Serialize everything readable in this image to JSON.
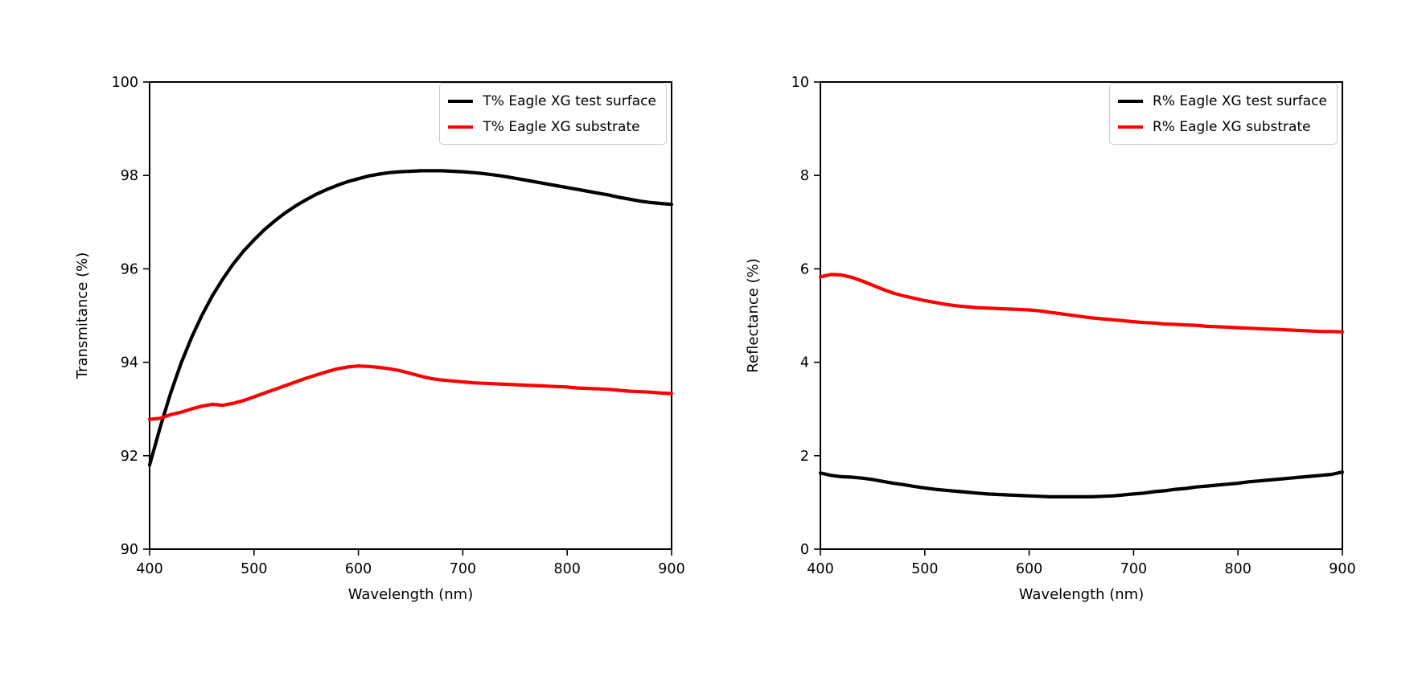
{
  "page": {
    "background": "#ffffff"
  },
  "colors": {
    "series_black": "#000000",
    "series_red": "#ff0000",
    "axis": "#000000",
    "legend_border": "#cccccc"
  },
  "chart_data": [
    {
      "type": "line",
      "title": "",
      "xlabel": "Wavelength (nm)",
      "ylabel": "Transmitance (%)",
      "xlim": [
        400,
        900
      ],
      "ylim": [
        90,
        100
      ],
      "xticks": [
        400,
        500,
        600,
        700,
        800,
        900
      ],
      "yticks": [
        90,
        92,
        94,
        96,
        98,
        100
      ],
      "grid": false,
      "legend_position": "upper right",
      "x": [
        400,
        410,
        420,
        430,
        440,
        450,
        460,
        470,
        480,
        490,
        500,
        510,
        520,
        530,
        540,
        550,
        560,
        570,
        580,
        590,
        600,
        610,
        620,
        630,
        640,
        650,
        660,
        670,
        680,
        690,
        700,
        710,
        720,
        730,
        740,
        750,
        760,
        770,
        780,
        790,
        800,
        810,
        820,
        830,
        840,
        850,
        860,
        870,
        880,
        890,
        900
      ],
      "series": [
        {
          "name": "T% Eagle XG test surface",
          "color": "#000000",
          "values": [
            91.8,
            92.6,
            93.33,
            93.97,
            94.52,
            95.0,
            95.42,
            95.78,
            96.1,
            96.38,
            96.62,
            96.84,
            97.03,
            97.2,
            97.35,
            97.48,
            97.6,
            97.7,
            97.79,
            97.87,
            97.93,
            97.99,
            98.03,
            98.06,
            98.08,
            98.09,
            98.1,
            98.1,
            98.1,
            98.09,
            98.08,
            98.06,
            98.04,
            98.01,
            97.98,
            97.94,
            97.9,
            97.86,
            97.82,
            97.78,
            97.74,
            97.7,
            97.66,
            97.62,
            97.58,
            97.53,
            97.49,
            97.45,
            97.42,
            97.4,
            97.38
          ]
        },
        {
          "name": "T% Eagle XG substrate",
          "color": "#ff0000",
          "values": [
            92.78,
            92.8,
            92.88,
            92.93,
            93.0,
            93.06,
            93.1,
            93.08,
            93.12,
            93.18,
            93.26,
            93.34,
            93.42,
            93.5,
            93.58,
            93.66,
            93.73,
            93.8,
            93.86,
            93.9,
            93.92,
            93.91,
            93.89,
            93.86,
            93.82,
            93.76,
            93.7,
            93.65,
            93.62,
            93.6,
            93.58,
            93.56,
            93.55,
            93.54,
            93.53,
            93.52,
            93.51,
            93.5,
            93.49,
            93.48,
            93.47,
            93.45,
            93.44,
            93.43,
            93.42,
            93.4,
            93.38,
            93.37,
            93.36,
            93.34,
            93.33
          ]
        }
      ]
    },
    {
      "type": "line",
      "title": "",
      "xlabel": "Wavelength (nm)",
      "ylabel": "Reflectance (%)",
      "xlim": [
        400,
        900
      ],
      "ylim": [
        0,
        10
      ],
      "xticks": [
        400,
        500,
        600,
        700,
        800,
        900
      ],
      "yticks": [
        0,
        2,
        4,
        6,
        8,
        10
      ],
      "grid": false,
      "legend_position": "upper right",
      "x": [
        400,
        410,
        420,
        430,
        440,
        450,
        460,
        470,
        480,
        490,
        500,
        510,
        520,
        530,
        540,
        550,
        560,
        570,
        580,
        590,
        600,
        610,
        620,
        630,
        640,
        650,
        660,
        670,
        680,
        690,
        700,
        710,
        720,
        730,
        740,
        750,
        760,
        770,
        780,
        790,
        800,
        810,
        820,
        830,
        840,
        850,
        860,
        870,
        880,
        890,
        900
      ],
      "series": [
        {
          "name": "R% Eagle XG test surface",
          "color": "#000000",
          "values": [
            1.63,
            1.58,
            1.55,
            1.54,
            1.52,
            1.49,
            1.45,
            1.41,
            1.38,
            1.34,
            1.31,
            1.28,
            1.26,
            1.24,
            1.22,
            1.2,
            1.18,
            1.17,
            1.16,
            1.15,
            1.14,
            1.13,
            1.12,
            1.12,
            1.12,
            1.12,
            1.12,
            1.13,
            1.14,
            1.16,
            1.18,
            1.2,
            1.23,
            1.25,
            1.28,
            1.3,
            1.33,
            1.35,
            1.37,
            1.39,
            1.41,
            1.44,
            1.46,
            1.48,
            1.5,
            1.52,
            1.54,
            1.56,
            1.58,
            1.6,
            1.65
          ]
        },
        {
          "name": "R% Eagle XG substrate",
          "color": "#ff0000",
          "values": [
            5.83,
            5.88,
            5.87,
            5.82,
            5.74,
            5.65,
            5.56,
            5.48,
            5.42,
            5.37,
            5.32,
            5.28,
            5.24,
            5.21,
            5.19,
            5.17,
            5.16,
            5.15,
            5.14,
            5.13,
            5.12,
            5.1,
            5.07,
            5.04,
            5.01,
            4.98,
            4.95,
            4.93,
            4.91,
            4.89,
            4.87,
            4.85,
            4.84,
            4.82,
            4.81,
            4.8,
            4.79,
            4.77,
            4.76,
            4.75,
            4.74,
            4.73,
            4.72,
            4.71,
            4.7,
            4.69,
            4.68,
            4.67,
            4.66,
            4.66,
            4.65
          ]
        }
      ]
    }
  ]
}
